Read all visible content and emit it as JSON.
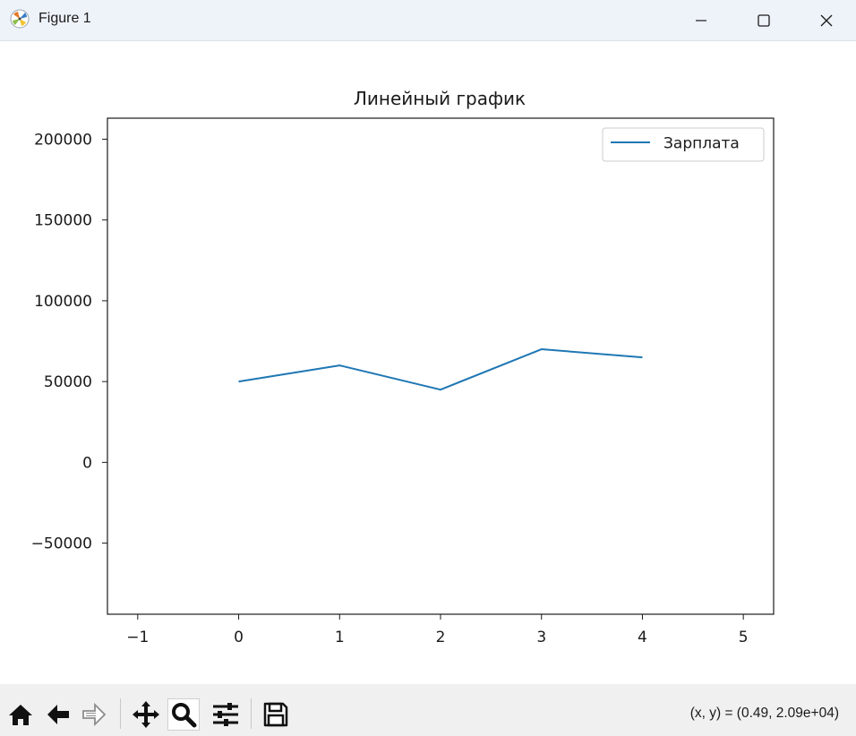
{
  "window": {
    "title": "Figure 1",
    "icon": "matplotlib-logo-icon",
    "controls": [
      "minimize-icon",
      "maximize-icon",
      "close-icon"
    ]
  },
  "chart_data": {
    "type": "line",
    "title": "Линейный график",
    "xlabel": "",
    "ylabel": "",
    "x": [
      0,
      1,
      2,
      3,
      4
    ],
    "series": [
      {
        "name": "Зарплата",
        "values": [
          50000,
          60000,
          45000,
          70000,
          65000
        ],
        "color": "#1f77b4"
      }
    ],
    "xlim": [
      -1.3,
      5.3
    ],
    "ylim": [
      -94000,
      213000
    ],
    "xticks": [
      -1,
      0,
      1,
      2,
      3,
      4,
      5
    ],
    "xtick_labels": [
      "−1",
      "0",
      "1",
      "2",
      "3",
      "4",
      "5"
    ],
    "yticks": [
      -50000,
      0,
      50000,
      100000,
      150000,
      200000
    ],
    "ytick_labels": [
      "−50000",
      "0",
      "50000",
      "100000",
      "150000",
      "200000"
    ],
    "legend": "top-right",
    "grid": false
  },
  "toolbar": {
    "tools": [
      {
        "name": "home-icon",
        "active": false
      },
      {
        "name": "back-arrow-icon",
        "active": false
      },
      {
        "name": "forward-arrow-icon",
        "active": false,
        "disabled": true
      },
      {
        "name": "pan-move-icon",
        "active": false
      },
      {
        "name": "zoom-magnifier-icon",
        "active": true
      },
      {
        "name": "configure-subplots-icon",
        "active": false
      },
      {
        "name": "save-floppy-icon",
        "active": false
      }
    ],
    "coords": "(x, y) = (0.49, 2.09e+04)"
  }
}
